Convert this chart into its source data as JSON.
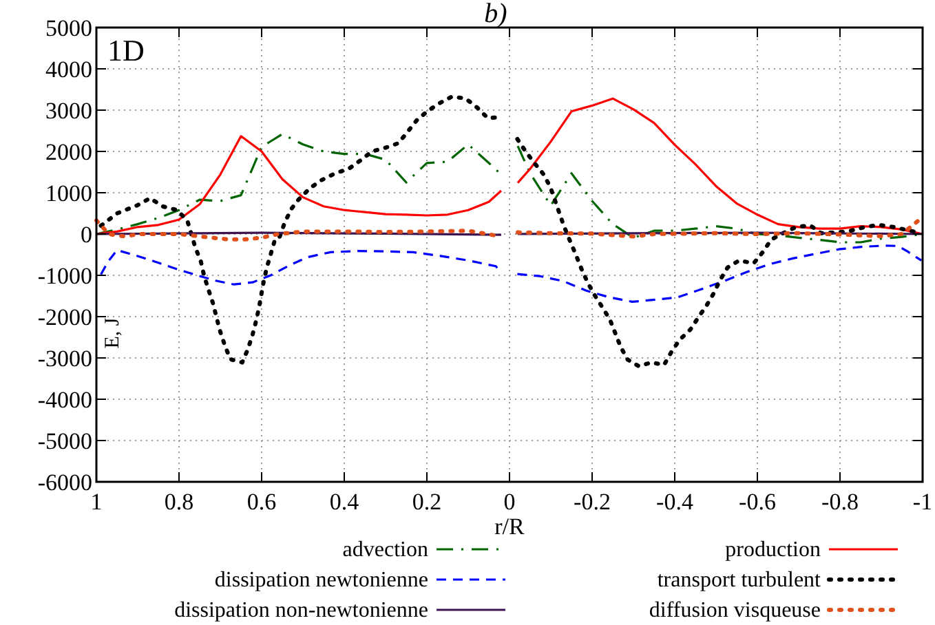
{
  "chart_data": {
    "type": "line",
    "title": "b)",
    "xlabel": "r/R",
    "ylabel": "E, J",
    "annotations": [
      "1D"
    ],
    "xlim": [
      1,
      -1
    ],
    "xticks": [
      1,
      0.8,
      0.6,
      0.4,
      0.2,
      0,
      -0.2,
      -0.4,
      -0.6,
      -0.8,
      -1
    ],
    "ylim": [
      -6000,
      5000
    ],
    "yticks": [
      -6000,
      -5000,
      -4000,
      -3000,
      -2000,
      -1000,
      0,
      1000,
      2000,
      3000,
      4000,
      5000
    ],
    "grid": true,
    "legend": "bottom",
    "marker": "none",
    "series": [
      {
        "name": "advection",
        "color": "#006400",
        "line_style": "dashdot",
        "x": [
          1,
          0.95,
          0.9,
          0.85,
          0.8,
          0.75,
          0.7,
          0.65,
          0.6,
          0.55,
          0.5,
          0.45,
          0.4,
          0.35,
          0.3,
          0.25,
          0.2,
          0.15,
          0.1,
          0.05,
          0.02,
          0,
          -0.02,
          -0.05,
          -0.1,
          -0.15,
          -0.2,
          -0.25,
          -0.3,
          -0.35,
          -0.4,
          -0.45,
          -0.5,
          -0.55,
          -0.6,
          -0.65,
          -0.7,
          -0.75,
          -0.8,
          -0.85,
          -0.9,
          -0.95,
          -1
        ],
        "values": [
          0,
          110,
          240,
          390,
          580,
          830,
          800,
          940,
          2110,
          2420,
          2170,
          2000,
          1940,
          1940,
          1800,
          1250,
          1720,
          1750,
          2170,
          1720,
          1440,
          null,
          2130,
          1470,
          690,
          1470,
          800,
          240,
          -90,
          80,
          80,
          130,
          190,
          130,
          0,
          -30,
          -90,
          -140,
          -200,
          -200,
          -110,
          -70,
          0
        ]
      },
      {
        "name": "production",
        "color": "#ff0000",
        "line_style": "solid",
        "x": [
          1,
          0.95,
          0.9,
          0.85,
          0.8,
          0.75,
          0.7,
          0.65,
          0.6,
          0.55,
          0.5,
          0.45,
          0.4,
          0.35,
          0.3,
          0.25,
          0.2,
          0.15,
          0.1,
          0.05,
          0.02,
          0,
          -0.02,
          -0.05,
          -0.1,
          -0.15,
          -0.2,
          -0.25,
          -0.3,
          -0.35,
          -0.4,
          -0.45,
          -0.5,
          -0.55,
          -0.6,
          -0.65,
          -0.7,
          -0.75,
          -0.8,
          -0.85,
          -0.9,
          -0.95,
          -1
        ],
        "values": [
          0,
          60,
          170,
          220,
          350,
          720,
          1440,
          2370,
          2000,
          1330,
          890,
          670,
          580,
          530,
          480,
          470,
          450,
          470,
          580,
          780,
          1050,
          null,
          1240,
          1580,
          2240,
          2970,
          3110,
          3280,
          3020,
          2690,
          2160,
          1690,
          1160,
          740,
          470,
          240,
          170,
          130,
          130,
          190,
          170,
          110,
          0
        ]
      },
      {
        "name": "dissipation newtonienne",
        "color": "#0000ff",
        "line_style": "dashed",
        "x": [
          0.989,
          0.972,
          0.95,
          0.911,
          0.867,
          0.811,
          0.756,
          0.711,
          0.667,
          0.622,
          0.578,
          0.533,
          0.489,
          0.433,
          0.367,
          0.3,
          0.233,
          0.167,
          0.1,
          0.033,
          0.02,
          0,
          -0.019,
          -0.074,
          -0.13,
          -0.186,
          -0.241,
          -0.297,
          -0.352,
          -0.408,
          -0.463,
          -0.519,
          -0.574,
          -0.63,
          -0.686,
          -0.741,
          -0.797,
          -0.852,
          -0.908,
          -0.941,
          -0.963,
          -0.997
        ],
        "values": [
          -980,
          -670,
          -390,
          -500,
          -640,
          -830,
          -1000,
          -1130,
          -1220,
          -1170,
          -1000,
          -760,
          -560,
          -440,
          -410,
          -420,
          -440,
          -530,
          -640,
          -780,
          -940,
          null,
          -970,
          -1020,
          -1140,
          -1370,
          -1530,
          -1640,
          -1590,
          -1530,
          -1340,
          -1140,
          -920,
          -730,
          -590,
          -480,
          -370,
          -310,
          -280,
          -290,
          -420,
          -640
        ]
      },
      {
        "name": "transport turbulent",
        "color": "#000000",
        "line_style": "dotted",
        "x": [
          0.989,
          0.95,
          0.9,
          0.87,
          0.84,
          0.805,
          0.78,
          0.761,
          0.747,
          0.739,
          0.728,
          0.717,
          0.709,
          0.7,
          0.689,
          0.676,
          0.647,
          0.633,
          0.622,
          0.613,
          0.606,
          0.6,
          0.594,
          0.586,
          0.576,
          0.567,
          0.556,
          0.544,
          0.528,
          0.511,
          0.483,
          0.456,
          0.422,
          0.389,
          0.361,
          0.333,
          0.3,
          0.269,
          0.247,
          0.224,
          0.198,
          0.169,
          0.139,
          0.106,
          0.078,
          0.053,
          0.02,
          0,
          -0.019,
          -0.039,
          -0.061,
          -0.083,
          -0.099,
          -0.11,
          -0.122,
          -0.133,
          -0.147,
          -0.161,
          -0.174,
          -0.189,
          -0.206,
          -0.224,
          -0.243,
          -0.256,
          -0.269,
          -0.286,
          -0.313,
          -0.344,
          -0.374,
          -0.391,
          -0.411,
          -0.438,
          -0.457,
          -0.477,
          -0.494,
          -0.51,
          -0.528,
          -0.556,
          -0.591,
          -0.613,
          -0.633,
          -0.658,
          -0.694,
          -0.728,
          -0.754,
          -0.794,
          -0.826,
          -0.861,
          -0.894,
          -0.93,
          -0.969,
          -0.997
        ],
        "values": [
          200,
          500,
          700,
          870,
          670,
          580,
          330,
          -310,
          -670,
          -1020,
          -1370,
          -1700,
          -2030,
          -2370,
          -2700,
          -3030,
          -3110,
          -2780,
          -2440,
          -2090,
          -1760,
          -1420,
          -1090,
          -760,
          -420,
          -110,
          -60,
          280,
          610,
          830,
          1110,
          1300,
          1470,
          1580,
          1780,
          2000,
          2090,
          2200,
          2470,
          2760,
          2980,
          3170,
          3330,
          3280,
          3060,
          2810,
          2830,
          null,
          2300,
          2000,
          1710,
          1440,
          1130,
          820,
          470,
          160,
          -180,
          -510,
          -840,
          -1170,
          -1480,
          -1760,
          -2070,
          -2400,
          -2730,
          -3040,
          -3200,
          -3110,
          -3170,
          -2870,
          -2570,
          -2310,
          -2020,
          -1730,
          -1440,
          -1110,
          -810,
          -640,
          -710,
          -440,
          -140,
          0,
          170,
          210,
          20,
          40,
          80,
          170,
          220,
          170,
          80,
          20
        ]
      },
      {
        "name": "dissipation non-newtonienne",
        "color": "#3c1450",
        "line_style": "solid",
        "x": [
          1,
          0.6,
          0.3,
          0.02,
          0,
          -0.02,
          -0.3,
          -0.6,
          -1
        ],
        "values": [
          0,
          30,
          10,
          -20,
          null,
          0,
          20,
          30,
          0
        ]
      },
      {
        "name": "diffusion visqueuse",
        "color": "#e0501a",
        "line_style": "dotted",
        "x": [
          1,
          0.97,
          0.93,
          0.9,
          0.8,
          0.72,
          0.68,
          0.64,
          0.6,
          0.56,
          0.54,
          0.5,
          0.4,
          0.3,
          0.2,
          0.1,
          0.02,
          0,
          -0.02,
          -0.1,
          -0.2,
          -0.3,
          -0.35,
          -0.5,
          -0.6,
          -0.7,
          -0.8,
          -0.9,
          -0.95,
          -1
        ],
        "values": [
          330,
          0,
          -60,
          0,
          0,
          -90,
          -130,
          -130,
          -90,
          0,
          20,
          60,
          60,
          50,
          60,
          80,
          -60,
          null,
          40,
          20,
          10,
          -60,
          0,
          20,
          0,
          20,
          -10,
          -50,
          0,
          410
        ]
      }
    ]
  }
}
